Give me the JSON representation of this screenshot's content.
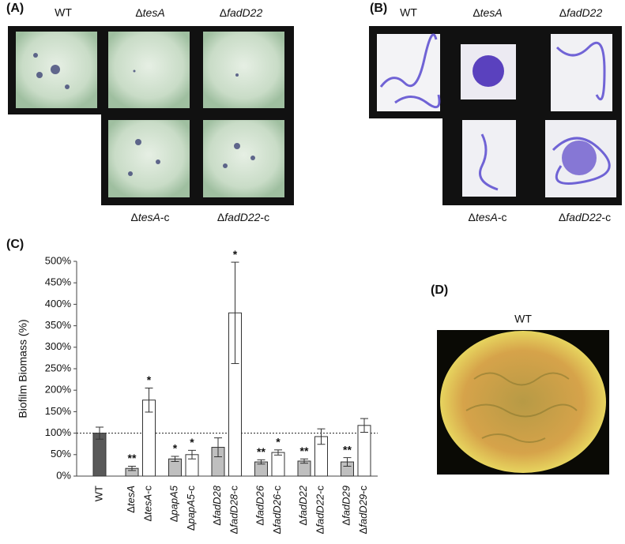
{
  "panels": {
    "a": {
      "label": "(A)",
      "top_labels": [
        "WT",
        "ΔtesA",
        "ΔfadD22"
      ],
      "bottom_labels": [
        "ΔtesA-c",
        "ΔfadD22-c"
      ]
    },
    "b": {
      "label": "(B)",
      "top_labels": [
        "WT",
        "ΔtesA",
        "ΔfadD22"
      ],
      "bottom_labels": [
        "ΔtesA-c",
        "ΔfadD22-c"
      ]
    },
    "d": {
      "label": "(D)",
      "caption": "WT"
    }
  },
  "chart_data": {
    "type": "bar",
    "panel_label": "(C)",
    "y_label": "Biofilm Biomass (%)",
    "categories": [
      "WT",
      "ΔtesA",
      "ΔtesA-c",
      "ΔpapA5",
      "ΔpapA5-c",
      "ΔfadD28",
      "ΔfadD28-c",
      "ΔfadD26",
      "ΔfadD26-c",
      "ΔfadD22",
      "ΔfadD22-c",
      "ΔfadD29",
      "ΔfadD29-c"
    ],
    "values": [
      100,
      18,
      177,
      40,
      50,
      67,
      380,
      33,
      55,
      35,
      92,
      33,
      118
    ],
    "errors": [
      14,
      5,
      28,
      6,
      10,
      22,
      118,
      5,
      6,
      5,
      18,
      10,
      16
    ],
    "significance": [
      null,
      "**",
      "*",
      "*",
      "*",
      null,
      "*",
      "**",
      "*",
      "**",
      null,
      "**",
      null
    ],
    "colors": [
      "#595959",
      "#bfbfbf",
      "#ffffff",
      "#bfbfbf",
      "#ffffff",
      "#bfbfbf",
      "#ffffff",
      "#bfbfbf",
      "#ffffff",
      "#bfbfbf",
      "#ffffff",
      "#bfbfbf",
      "#ffffff"
    ],
    "reference_line": 100,
    "ylim": [
      0,
      500
    ],
    "yticks": [
      {
        "value": 0,
        "label": "0%"
      },
      {
        "value": 50,
        "label": "50%"
      },
      {
        "value": 100,
        "label": "100%"
      },
      {
        "value": 150,
        "label": "150%"
      },
      {
        "value": 200,
        "label": "200%"
      },
      {
        "value": 250,
        "label": "250%"
      },
      {
        "value": 300,
        "label": "300%"
      },
      {
        "value": 350,
        "label": "350%"
      },
      {
        "value": 400,
        "label": "400%"
      },
      {
        "value": 450,
        "label": "450%"
      },
      {
        "value": 500,
        "label": "500%"
      }
    ]
  }
}
